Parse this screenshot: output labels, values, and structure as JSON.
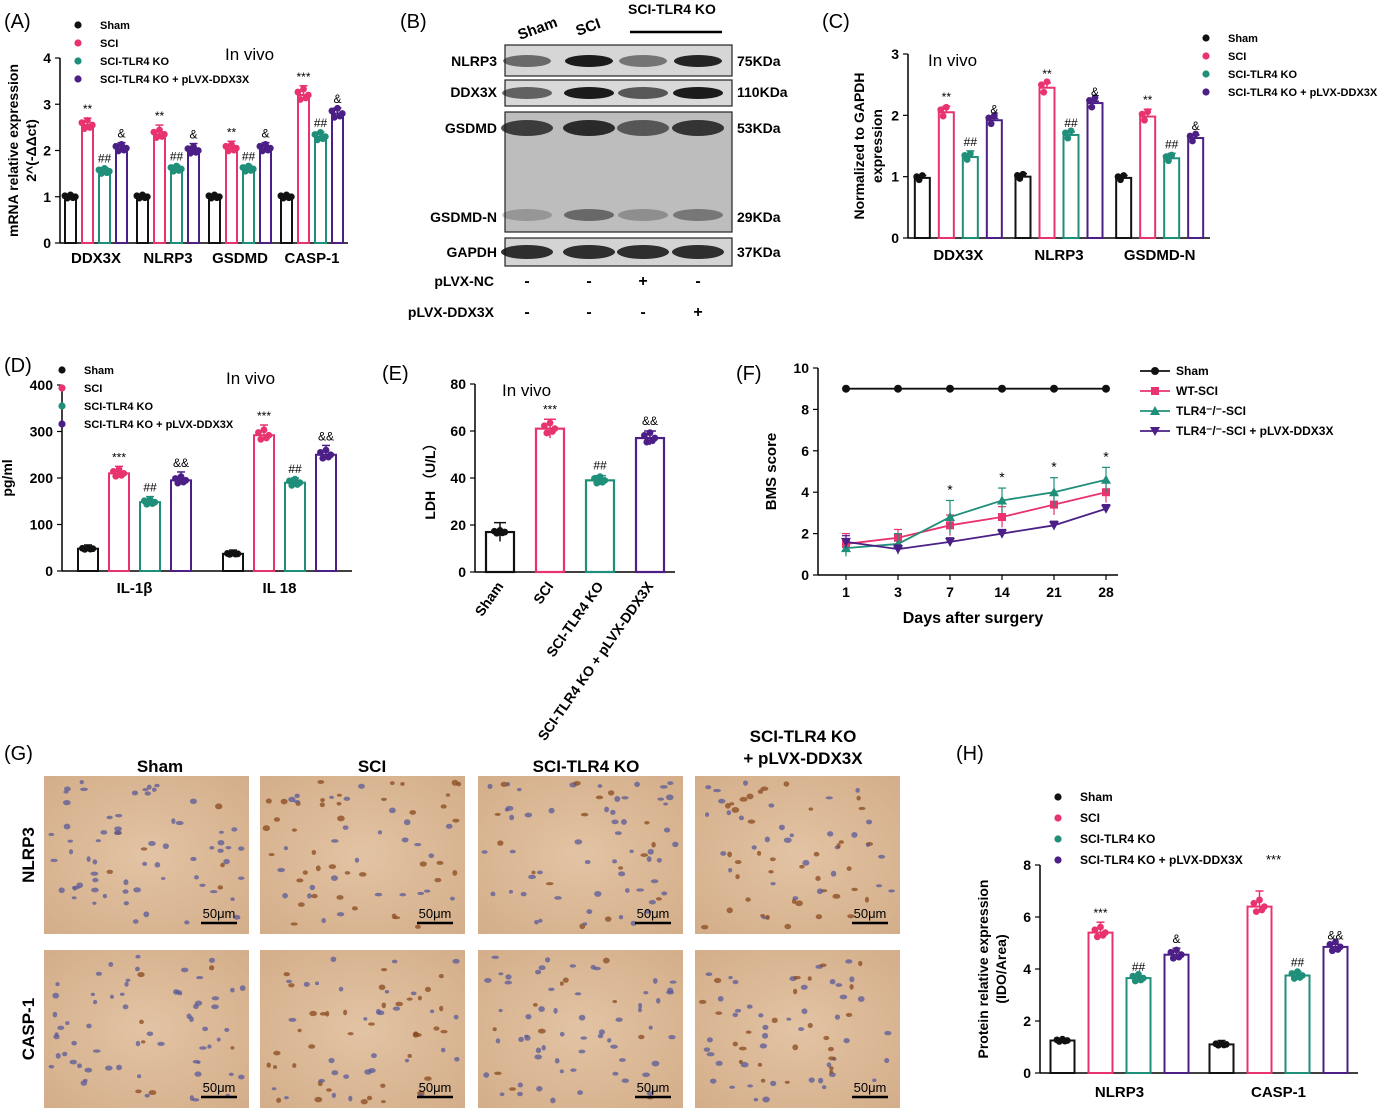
{
  "colors": {
    "Sham": "#111111",
    "SCI": "#e8336f",
    "SCI-TLR4 KO": "#1f8f7a",
    "SCI-TLR4 KO + pLVX-DDX3X": "#4b1f86"
  },
  "panel_letters": [
    "(A)",
    "(B)",
    "(C)",
    "(D)",
    "(E)",
    "(F)",
    "(G)",
    "(H)"
  ],
  "blot": {
    "header": [
      "Sham",
      "SCI",
      "SCI-TLR4 KO"
    ],
    "bands": [
      {
        "name": "NLRP3",
        "size": "75KDa"
      },
      {
        "name": "DDX3X",
        "size": "110KDa"
      },
      {
        "name": "GSDMD",
        "size": "53KDa"
      },
      {
        "name": "GSDMD-N",
        "size": "29KDa"
      },
      {
        "name": "GAPDH",
        "size": "37KDa"
      }
    ],
    "rows": [
      {
        "label": "pLVX-NC",
        "marks": [
          "-",
          "-",
          "+",
          "-"
        ]
      },
      {
        "label": "pLVX-DDX3X",
        "marks": [
          "-",
          "-",
          "-",
          "+"
        ]
      }
    ]
  },
  "ihc": {
    "columns": [
      "Sham",
      "SCI",
      "SCI-TLR4 KO",
      "SCI-TLR4 KO\n+ pLVX-DDX3X"
    ],
    "rows": [
      "NLRP3",
      "CASP-1"
    ],
    "scale_label": "50μm"
  },
  "chart_data": [
    {
      "panel": "A",
      "type": "bar",
      "annotation": "In vivo",
      "ylabel": "mRNA relative expression\n2^(-ΔΔct)",
      "ylim": [
        0,
        4
      ],
      "yticks": [
        0,
        1,
        2,
        3,
        4
      ],
      "categories": [
        "DDX3X",
        "NLRP3",
        "GSDMD",
        "CASP-1"
      ],
      "legend": [
        "Sham",
        "SCI",
        "SCI-TLR4 KO",
        "SCI-TLR4 KO + pLVX-DDX3X"
      ],
      "series": [
        {
          "name": "Sham",
          "values": [
            1.0,
            1.0,
            1.0,
            1.0
          ],
          "err": [
            0.05,
            0.05,
            0.05,
            0.05
          ],
          "marks": [
            "",
            "",
            "",
            ""
          ]
        },
        {
          "name": "SCI",
          "values": [
            2.55,
            2.35,
            2.05,
            3.2
          ],
          "err": [
            0.15,
            0.2,
            0.15,
            0.2
          ],
          "marks": [
            "**",
            "**",
            "**",
            "***"
          ]
        },
        {
          "name": "SCI-TLR4 KO",
          "values": [
            1.55,
            1.6,
            1.6,
            2.3
          ],
          "err": [
            0.08,
            0.08,
            0.08,
            0.1
          ],
          "marks": [
            "##",
            "##",
            "##",
            "##"
          ]
        },
        {
          "name": "SCI-TLR4 KO + pLVX-DDX3X",
          "values": [
            2.05,
            2.0,
            2.05,
            2.8
          ],
          "err": [
            0.12,
            0.15,
            0.12,
            0.12
          ],
          "marks": [
            "&",
            "&",
            "&",
            "&"
          ]
        }
      ]
    },
    {
      "panel": "C",
      "type": "bar",
      "annotation": "In vivo",
      "ylabel": "Normalized to GAPDH\nexpression",
      "ylim": [
        0,
        3
      ],
      "yticks": [
        0,
        1,
        2,
        3
      ],
      "categories": [
        "DDX3X",
        "NLRP3",
        "GSDMD-N"
      ],
      "legend": [
        "Sham",
        "SCI",
        "SCI-TLR4 KO",
        "SCI-TLR4 KO + pLVX-DDX3X"
      ],
      "series": [
        {
          "name": "Sham",
          "values": [
            0.98,
            1.0,
            0.98
          ],
          "err": [
            0.04,
            0.05,
            0.04
          ],
          "marks": [
            "",
            "",
            ""
          ]
        },
        {
          "name": "SCI",
          "values": [
            2.05,
            2.45,
            1.98
          ],
          "err": [
            0.1,
            0.08,
            0.12
          ],
          "marks": [
            "**",
            "**",
            "**"
          ]
        },
        {
          "name": "SCI-TLR4 KO",
          "values": [
            1.32,
            1.68,
            1.3
          ],
          "err": [
            0.1,
            0.05,
            0.08
          ],
          "marks": [
            "##",
            "##",
            "##"
          ]
        },
        {
          "name": "SCI-TLR4 KO + pLVX-DDX3X",
          "values": [
            1.92,
            2.2,
            1.63
          ],
          "err": [
            0.03,
            0.03,
            0.05
          ],
          "marks": [
            "&",
            "&",
            "&"
          ]
        }
      ]
    },
    {
      "panel": "D",
      "type": "bar",
      "annotation": "In vivo",
      "ylabel": "pg/ml",
      "ylim": [
        0,
        400
      ],
      "yticks": [
        0,
        100,
        200,
        300,
        400
      ],
      "categories": [
        "IL-1β",
        "IL 18"
      ],
      "legend": [
        "Sham",
        "SCI",
        "SCI-TLR4 KO",
        "SCI-TLR4 KO + pLVX-DDX3X"
      ],
      "series": [
        {
          "name": "Sham",
          "values": [
            48,
            37
          ],
          "err": [
            8,
            8
          ],
          "marks": [
            "",
            ""
          ]
        },
        {
          "name": "SCI",
          "values": [
            210,
            292
          ],
          "err": [
            15,
            22
          ],
          "marks": [
            "***",
            "***"
          ]
        },
        {
          "name": "SCI-TLR4 KO",
          "values": [
            148,
            190
          ],
          "err": [
            12,
            10
          ],
          "marks": [
            "##",
            "##"
          ]
        },
        {
          "name": "SCI-TLR4 KO + pLVX-DDX3X",
          "values": [
            195,
            250
          ],
          "err": [
            18,
            20
          ],
          "marks": [
            "&&",
            "&&"
          ]
        }
      ]
    },
    {
      "panel": "E",
      "type": "bar",
      "annotation": "In vivo",
      "ylabel": "LDH （U/L）",
      "ylim": [
        0,
        80
      ],
      "yticks": [
        0,
        20,
        40,
        60,
        80
      ],
      "categories": [
        "Sham",
        "SCI",
        "SCI-TLR4 KO",
        "SCI-TLR4 KO + pLVX-DDX3X"
      ],
      "values": [
        17,
        61,
        39,
        57
      ],
      "err": [
        4,
        4,
        2,
        3
      ],
      "marks": [
        "",
        "***",
        "##",
        "&&"
      ]
    },
    {
      "panel": "F",
      "type": "line",
      "xlabel": "Days after surgery",
      "ylabel": "BMS score",
      "x": [
        1,
        3,
        7,
        14,
        21,
        28
      ],
      "ylim": [
        0,
        10
      ],
      "yticks": [
        0,
        2,
        4,
        6,
        8,
        10
      ],
      "series": [
        {
          "name": "Sham",
          "marker": "circle",
          "values": [
            9,
            9,
            9,
            9,
            9,
            9
          ],
          "err": [
            0,
            0,
            0,
            0,
            0,
            0
          ]
        },
        {
          "name": "WT-SCI",
          "marker": "square",
          "values": [
            1.5,
            1.8,
            2.4,
            2.8,
            3.4,
            4.0
          ],
          "err": [
            0.5,
            0.4,
            0.5,
            0.5,
            0.5,
            0.5
          ]
        },
        {
          "name": "TLR4⁻/⁻-SCI",
          "marker": "triangle",
          "values": [
            1.3,
            1.5,
            2.8,
            3.6,
            4.0,
            4.6
          ],
          "err": [
            0.4,
            0.5,
            0.8,
            0.6,
            0.7,
            0.6
          ]
        },
        {
          "name": "TLR4⁻/⁻-SCI + pLVX-DDX3X",
          "marker": "triangle-down",
          "values": [
            1.6,
            1.25,
            1.6,
            2.0,
            2.4,
            3.2
          ],
          "err": [
            0.3,
            0.2,
            0.2,
            0.2,
            0.2,
            0.2
          ]
        }
      ],
      "marks": [
        "",
        "",
        "*",
        "*",
        "*",
        "*"
      ]
    },
    {
      "panel": "H",
      "type": "bar",
      "ylabel": "Protein relative expression\n(IDO/Area)",
      "ylim": [
        0,
        8
      ],
      "yticks": [
        0,
        2,
        4,
        6,
        8
      ],
      "categories": [
        "NLRP3",
        "CASP-1"
      ],
      "legend": [
        "Sham",
        "SCI",
        "SCI-TLR4 KO",
        "SCI-TLR4 KO + pLVX-DDX3X"
      ],
      "legend_extra": "***",
      "series": [
        {
          "name": "Sham",
          "values": [
            1.25,
            1.1
          ],
          "err": [
            0.08,
            0.15
          ],
          "marks": [
            "",
            ""
          ]
        },
        {
          "name": "SCI",
          "values": [
            5.4,
            6.4
          ],
          "err": [
            0.4,
            0.6
          ],
          "marks": [
            "***",
            ""
          ]
        },
        {
          "name": "SCI-TLR4 KO",
          "values": [
            3.65,
            3.75
          ],
          "err": [
            0.08,
            0.15
          ],
          "marks": [
            "##",
            "##"
          ]
        },
        {
          "name": "SCI-TLR4 KO + pLVX-DDX3X",
          "values": [
            4.55,
            4.85
          ],
          "err": [
            0.25,
            0.1
          ],
          "marks": [
            "&",
            "&&"
          ]
        }
      ]
    }
  ]
}
